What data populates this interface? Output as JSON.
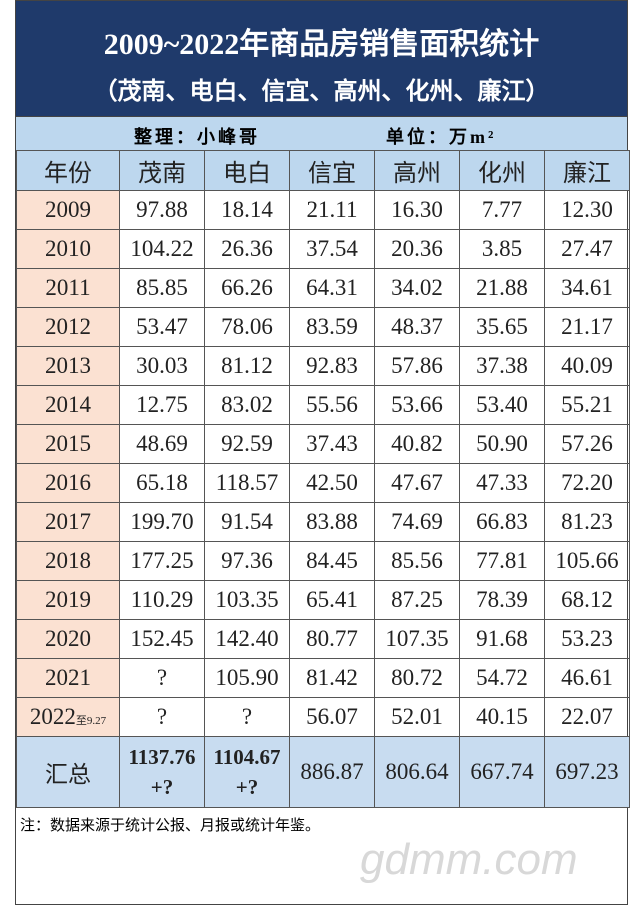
{
  "header": {
    "title": "2009~2022年商品房销售面积统计",
    "subtitle": "（茂南、电白、信宜、高州、化州、廉江）",
    "credit": "整理：小峰哥",
    "unit": "单位：万m²"
  },
  "table": {
    "columns": [
      "年份",
      "茂南",
      "电白",
      "信宜",
      "高州",
      "化州",
      "廉江"
    ],
    "rows": [
      {
        "year": "2009",
        "values": [
          "97.88",
          "18.14",
          "21.11",
          "16.30",
          "7.77",
          "12.30"
        ]
      },
      {
        "year": "2010",
        "values": [
          "104.22",
          "26.36",
          "37.54",
          "20.36",
          "3.85",
          "27.47"
        ]
      },
      {
        "year": "2011",
        "values": [
          "85.85",
          "66.26",
          "64.31",
          "34.02",
          "21.88",
          "34.61"
        ]
      },
      {
        "year": "2012",
        "values": [
          "53.47",
          "78.06",
          "83.59",
          "48.37",
          "35.65",
          "21.17"
        ]
      },
      {
        "year": "2013",
        "values": [
          "30.03",
          "81.12",
          "92.83",
          "57.86",
          "37.38",
          "40.09"
        ]
      },
      {
        "year": "2014",
        "values": [
          "12.75",
          "83.02",
          "55.56",
          "53.66",
          "53.40",
          "55.21"
        ]
      },
      {
        "year": "2015",
        "values": [
          "48.69",
          "92.59",
          "37.43",
          "40.82",
          "50.90",
          "57.26"
        ]
      },
      {
        "year": "2016",
        "values": [
          "65.18",
          "118.57",
          "42.50",
          "47.67",
          "47.33",
          "72.20"
        ]
      },
      {
        "year": "2017",
        "values": [
          "199.70",
          "91.54",
          "83.88",
          "74.69",
          "66.83",
          "81.23"
        ]
      },
      {
        "year": "2018",
        "values": [
          "177.25",
          "97.36",
          "84.45",
          "85.56",
          "77.81",
          "105.66"
        ]
      },
      {
        "year": "2019",
        "values": [
          "110.29",
          "103.35",
          "65.41",
          "87.25",
          "78.39",
          "68.12"
        ]
      },
      {
        "year": "2020",
        "values": [
          "152.45",
          "142.40",
          "80.77",
          "107.35",
          "91.68",
          "53.23"
        ]
      },
      {
        "year": "2021",
        "values": [
          "?",
          "105.90",
          "81.42",
          "80.72",
          "54.72",
          "46.61"
        ]
      },
      {
        "year": "2022",
        "year_note": "至9.27",
        "values": [
          "?",
          "?",
          "56.07",
          "52.01",
          "40.15",
          "22.07"
        ]
      }
    ],
    "total": {
      "label": "汇总",
      "cells": [
        {
          "value": "1137.76",
          "extra": "+?"
        },
        {
          "value": "1104.67",
          "extra": "+?"
        },
        {
          "value": "886.87"
        },
        {
          "value": "806.64"
        },
        {
          "value": "667.74"
        },
        {
          "value": "697.23"
        }
      ]
    }
  },
  "note": "注：数据来源于统计公报、月报或统计年鉴。",
  "watermark": "gdmm.com"
}
